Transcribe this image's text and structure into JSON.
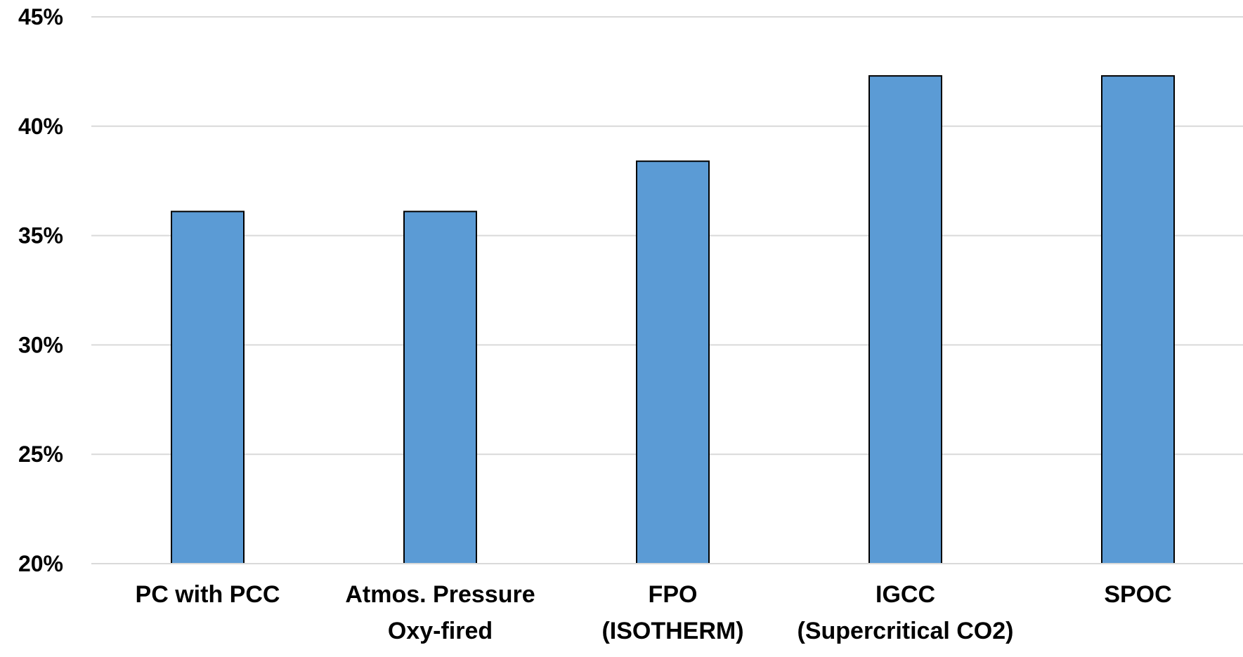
{
  "chart_data": {
    "type": "bar",
    "title": "",
    "xlabel": "",
    "ylabel": "",
    "ylim": [
      0.2,
      0.45
    ],
    "y_ticks": [
      {
        "value": 0.2,
        "label": "20%"
      },
      {
        "value": 0.25,
        "label": "25%"
      },
      {
        "value": 0.3,
        "label": "30%"
      },
      {
        "value": 0.35,
        "label": "35%"
      },
      {
        "value": 0.4,
        "label": "40%"
      },
      {
        "value": 0.45,
        "label": "45%"
      }
    ],
    "grid": true,
    "legend": "none",
    "categories": [
      [
        "PC with PCC"
      ],
      [
        "Atmos. Pressure",
        "Oxy-fired"
      ],
      [
        "FPO",
        "(ISOTHERM)"
      ],
      [
        "IGCC",
        "(Supercritical CO2)"
      ],
      [
        "SPOC"
      ]
    ],
    "values": [
      0.361,
      0.361,
      0.384,
      0.423,
      0.423
    ],
    "colors": {
      "bar_fill": "#5b9bd5",
      "bar_stroke": "#000000",
      "grid": "#d9d9d9",
      "axis": "#d9d9d9"
    }
  }
}
